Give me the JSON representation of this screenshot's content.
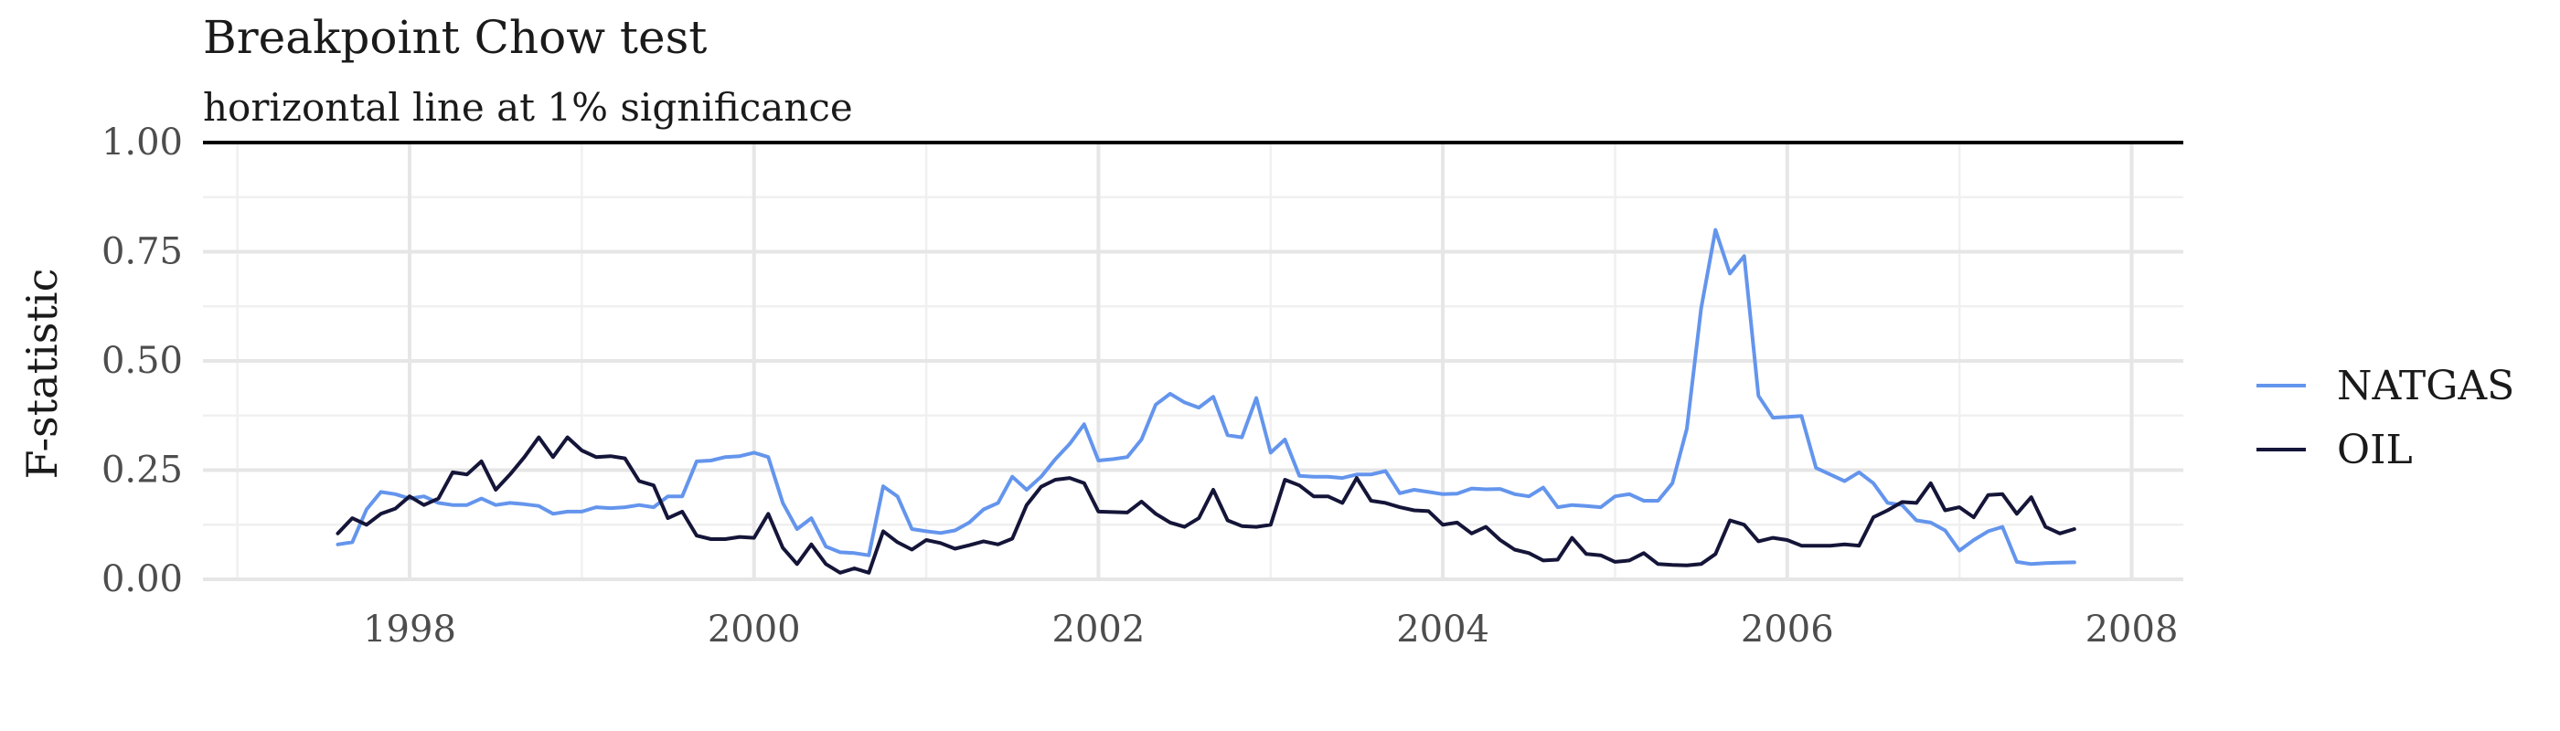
{
  "chart_data": {
    "type": "line",
    "title": "Breakpoint Chow test",
    "subtitle": "horizontal line at 1% significance",
    "xlabel": "",
    "ylabel": "F-statistic",
    "xlim": [
      1996.8,
      2008.3
    ],
    "ylim": [
      0,
      1.0
    ],
    "x_ticks": [
      1998,
      2000,
      2002,
      2004,
      2006,
      2008
    ],
    "y_ticks": [
      0,
      0.25,
      0.5,
      0.75,
      1.0
    ],
    "y_tick_labels": [
      "0.00",
      "0.25",
      "0.50",
      "0.75",
      "1.00"
    ],
    "hline": 1.0,
    "grid": true,
    "legend_position": "right",
    "x": [
      1997.583,
      1997.667,
      1997.75,
      1997.833,
      1997.917,
      1998.0,
      1998.083,
      1998.167,
      1998.25,
      1998.333,
      1998.417,
      1998.5,
      1998.583,
      1998.667,
      1998.75,
      1998.833,
      1998.917,
      1999.0,
      1999.083,
      1999.167,
      1999.25,
      1999.333,
      1999.417,
      1999.5,
      1999.583,
      1999.667,
      1999.75,
      1999.833,
      1999.917,
      2000.0,
      2000.083,
      2000.167,
      2000.25,
      2000.333,
      2000.417,
      2000.5,
      2000.583,
      2000.667,
      2000.75,
      2000.833,
      2000.917,
      2001.0,
      2001.083,
      2001.167,
      2001.25,
      2001.333,
      2001.417,
      2001.5,
      2001.583,
      2001.667,
      2001.75,
      2001.833,
      2001.917,
      2002.0,
      2002.083,
      2002.167,
      2002.25,
      2002.333,
      2002.417,
      2002.5,
      2002.583,
      2002.667,
      2002.75,
      2002.833,
      2002.917,
      2003.0,
      2003.083,
      2003.167,
      2003.25,
      2003.333,
      2003.417,
      2003.5,
      2003.583,
      2003.667,
      2003.75,
      2003.833,
      2003.917,
      2004.0,
      2004.083,
      2004.167,
      2004.25,
      2004.333,
      2004.417,
      2004.5,
      2004.583,
      2004.667,
      2004.75,
      2004.833,
      2004.917,
      2005.0,
      2005.083,
      2005.167,
      2005.25,
      2005.333,
      2005.417,
      2005.5,
      2005.583,
      2005.667,
      2005.75,
      2005.833,
      2005.917,
      2006.0,
      2006.083,
      2006.167,
      2006.25,
      2006.333,
      2006.417,
      2006.5,
      2006.583,
      2006.667,
      2006.75,
      2006.833,
      2006.917,
      2007.0,
      2007.083,
      2007.167,
      2007.25,
      2007.333,
      2007.417,
      2007.5,
      2007.583,
      2007.667
    ],
    "series": [
      {
        "name": "NATGAS",
        "color": "#6495ed",
        "values": [
          0.08,
          0.085,
          0.16,
          0.2,
          0.195,
          0.185,
          0.19,
          0.175,
          0.17,
          0.17,
          0.185,
          0.17,
          0.175,
          0.172,
          0.168,
          0.15,
          0.155,
          0.155,
          0.165,
          0.163,
          0.165,
          0.17,
          0.165,
          0.19,
          0.19,
          0.27,
          0.272,
          0.28,
          0.282,
          0.29,
          0.28,
          0.175,
          0.115,
          0.14,
          0.075,
          0.062,
          0.06,
          0.055,
          0.213,
          0.19,
          0.115,
          0.11,
          0.106,
          0.112,
          0.13,
          0.16,
          0.175,
          0.235,
          0.205,
          0.235,
          0.275,
          0.31,
          0.355,
          0.272,
          0.275,
          0.28,
          0.32,
          0.4,
          0.425,
          0.405,
          0.393,
          0.418,
          0.33,
          0.325,
          0.415,
          0.29,
          0.32,
          0.237,
          0.235,
          0.235,
          0.232,
          0.24,
          0.24,
          0.248,
          0.197,
          0.205,
          0.2,
          0.195,
          0.196,
          0.208,
          0.206,
          0.207,
          0.195,
          0.19,
          0.21,
          0.165,
          0.17,
          0.168,
          0.165,
          0.19,
          0.195,
          0.18,
          0.18,
          0.22,
          0.345,
          0.62,
          0.8,
          0.7,
          0.74,
          0.42,
          0.37,
          0.372,
          0.374,
          0.255,
          0.24,
          0.225,
          0.245,
          0.22,
          0.175,
          0.17,
          0.135,
          0.13,
          0.112,
          0.066,
          0.09,
          0.11,
          0.12,
          0.04,
          0.035,
          0.037,
          0.038,
          0.039
        ]
      },
      {
        "name": "OIL",
        "color": "#141538",
        "values": [
          0.105,
          0.14,
          0.125,
          0.15,
          0.162,
          0.19,
          0.17,
          0.185,
          0.245,
          0.24,
          0.27,
          0.205,
          0.24,
          0.28,
          0.325,
          0.28,
          0.325,
          0.295,
          0.28,
          0.282,
          0.277,
          0.225,
          0.215,
          0.14,
          0.155,
          0.1,
          0.092,
          0.092,
          0.097,
          0.095,
          0.15,
          0.072,
          0.035,
          0.08,
          0.035,
          0.015,
          0.025,
          0.015,
          0.11,
          0.085,
          0.068,
          0.09,
          0.083,
          0.07,
          0.078,
          0.087,
          0.08,
          0.093,
          0.17,
          0.212,
          0.228,
          0.232,
          0.22,
          0.155,
          0.154,
          0.153,
          0.178,
          0.15,
          0.13,
          0.12,
          0.14,
          0.205,
          0.135,
          0.122,
          0.12,
          0.125,
          0.228,
          0.215,
          0.19,
          0.19,
          0.175,
          0.232,
          0.18,
          0.175,
          0.165,
          0.158,
          0.156,
          0.125,
          0.13,
          0.105,
          0.12,
          0.09,
          0.068,
          0.06,
          0.043,
          0.045,
          0.095,
          0.058,
          0.055,
          0.04,
          0.043,
          0.06,
          0.035,
          0.033,
          0.032,
          0.035,
          0.058,
          0.135,
          0.125,
          0.087,
          0.095,
          0.09,
          0.077,
          0.077,
          0.077,
          0.08,
          0.077,
          0.142,
          0.158,
          0.177,
          0.175,
          0.22,
          0.158,
          0.165,
          0.142,
          0.193,
          0.195,
          0.15,
          0.188,
          0.12,
          0.105,
          0.115
        ]
      }
    ]
  }
}
